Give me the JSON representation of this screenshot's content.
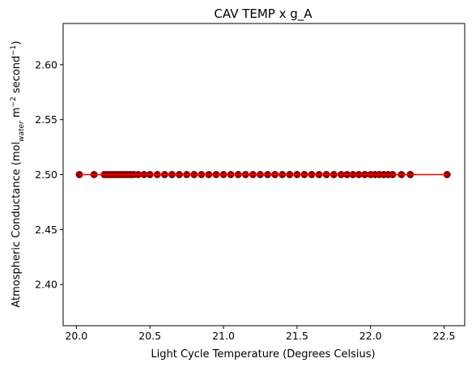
{
  "chart_data": {
    "type": "scatter",
    "title": "CAV TEMP x g_A",
    "xlabel": "Light Cycle Temperature (Degrees Celsius)",
    "ylabel": {
      "prefix": "Atmospheric Conductance (mol",
      "sub": "water",
      "middle": " m",
      "sup1": "−2",
      "suffix": " second",
      "sup2": "−1",
      "close": ")"
    },
    "xlim": [
      19.91,
      22.64
    ],
    "ylim": [
      2.3625,
      2.6375
    ],
    "x_ticks": [
      "20.0",
      "20.5",
      "21.0",
      "21.5",
      "22.0",
      "22.5"
    ],
    "x_tick_values": [
      20.0,
      20.5,
      21.0,
      21.5,
      22.0,
      22.5
    ],
    "y_ticks": [
      "2.40",
      "2.45",
      "2.50",
      "2.55",
      "2.60"
    ],
    "y_tick_values": [
      2.4,
      2.45,
      2.5,
      2.55,
      2.6
    ],
    "grid": false,
    "series": [
      {
        "marker_color": "#8b0000",
        "line_color": "#ff0000",
        "x": [
          20.02,
          20.12,
          20.19,
          20.21,
          20.23,
          20.25,
          20.27,
          20.29,
          20.31,
          20.33,
          20.35,
          20.37,
          20.39,
          20.42,
          20.46,
          20.5,
          20.55,
          20.6,
          20.65,
          20.7,
          20.75,
          20.8,
          20.85,
          20.9,
          20.95,
          21.0,
          21.05,
          21.1,
          21.15,
          21.2,
          21.25,
          21.3,
          21.35,
          21.4,
          21.45,
          21.5,
          21.55,
          21.6,
          21.65,
          21.7,
          21.75,
          21.8,
          21.84,
          21.88,
          21.92,
          21.96,
          22.0,
          22.03,
          22.06,
          22.09,
          22.12,
          22.15,
          22.21,
          22.27,
          22.52
        ],
        "y": [
          2.5,
          2.5,
          2.5,
          2.5,
          2.5,
          2.5,
          2.5,
          2.5,
          2.5,
          2.5,
          2.5,
          2.5,
          2.5,
          2.5,
          2.5,
          2.5,
          2.5,
          2.5,
          2.5,
          2.5,
          2.5,
          2.5,
          2.5,
          2.5,
          2.5,
          2.5,
          2.5,
          2.5,
          2.5,
          2.5,
          2.5,
          2.5,
          2.5,
          2.5,
          2.5,
          2.5,
          2.5,
          2.5,
          2.5,
          2.5,
          2.5,
          2.5,
          2.5,
          2.5,
          2.5,
          2.5,
          2.5,
          2.5,
          2.5,
          2.5,
          2.5,
          2.5,
          2.5,
          2.5,
          2.5
        ],
        "fit_line": {
          "x": [
            20.02,
            22.52
          ],
          "y": [
            2.5,
            2.5
          ]
        }
      }
    ]
  }
}
